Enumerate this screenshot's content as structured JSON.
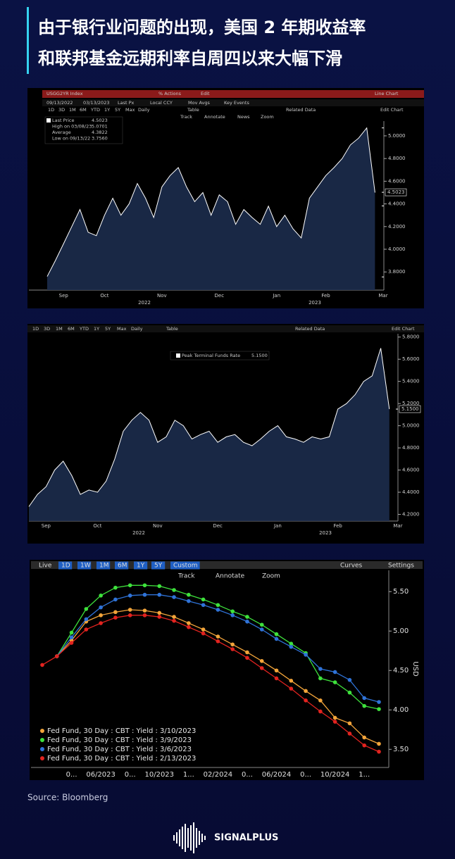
{
  "title": [
    "由于银行业问题的出现，美国 2 年期收益率",
    "和联邦基金远期利率自周四以来大幅下滑"
  ],
  "source": "Source: Bloomberg",
  "brand": "SIGNALPLUS",
  "chart_data": [
    {
      "type": "area",
      "toolbar": [
        [
          "USGG2YR Index",
          "% Actions",
          "Edit",
          "Line Chart"
        ],
        [
          "09/13/2022",
          "03/13/2023",
          "Last Px",
          "Local CCY",
          "Mov Avgs",
          "Key Events"
        ],
        [
          "1D",
          "3D",
          "1M",
          "6M",
          "YTD",
          "1Y",
          "5Y",
          "Max",
          "Daily",
          "Table",
          "Related Data",
          "Edit Chart"
        ],
        [
          "Track",
          "Annotate",
          "News",
          "Zoom"
        ]
      ],
      "stats": [
        {
          "name": "Last Price",
          "value": 4.5023,
          "value_label": "4.5023"
        },
        {
          "name": "High on 03/08/23",
          "value": 5.0701,
          "value_label": "5.0701"
        },
        {
          "name": "Average",
          "value": 4.3822,
          "value_label": "4.3822"
        },
        {
          "name": "Low on 09/13/22",
          "value": 3.756,
          "value_label": "3.7560"
        }
      ],
      "categories": [
        null,
        null,
        "Sep",
        null,
        null,
        null,
        null,
        "Oct",
        null,
        null,
        null,
        null,
        null,
        null,
        "Nov",
        null,
        null,
        null,
        null,
        null,
        null,
        "Dec",
        null,
        null,
        null,
        null,
        null,
        null,
        "Jan",
        null,
        null,
        null,
        null,
        null,
        "Feb",
        null,
        null,
        null,
        null,
        null,
        null,
        "Mar"
      ],
      "values": [
        3.76,
        3.9,
        4.05,
        4.2,
        4.35,
        4.15,
        4.12,
        4.3,
        4.45,
        4.3,
        4.4,
        4.58,
        4.45,
        4.28,
        4.55,
        4.65,
        4.72,
        4.55,
        4.42,
        4.5,
        4.3,
        4.48,
        4.42,
        4.22,
        4.35,
        4.28,
        4.22,
        4.38,
        4.2,
        4.3,
        4.18,
        4.1,
        4.45,
        4.55,
        4.65,
        4.72,
        4.8,
        4.92,
        4.98,
        5.07,
        4.5,
        null
      ],
      "x_groups": [
        "2022",
        "2023"
      ],
      "color": "#ffffff",
      "fill": "#1c2c4c",
      "ylim": [
        3.64,
        5.13
      ],
      "yticks": [
        {
          "value": 3.8,
          "label": "3.8000"
        },
        {
          "value": 4.0,
          "label": "4.0000"
        },
        {
          "value": 4.2,
          "label": "4.2000"
        },
        {
          "value": 4.4,
          "label": "4.4000"
        },
        {
          "value": 4.6,
          "label": "4.6000"
        },
        {
          "value": 4.8,
          "label": "4.8000"
        },
        {
          "value": 5.0,
          "label": "5.0000"
        }
      ]
    },
    {
      "type": "area",
      "toolbar": [
        [
          "1D",
          "3D",
          "1M",
          "6M",
          "YTD",
          "1Y",
          "5Y",
          "Max",
          "Daily",
          "Table",
          "Related Data",
          "Edit Chart"
        ]
      ],
      "stats": [
        {
          "name": "Peak Terminal Funds Rate",
          "value": 5.15,
          "value_label": "5.1500"
        }
      ],
      "categories": [
        null,
        null,
        "Sep",
        null,
        null,
        null,
        null,
        null,
        "Oct",
        null,
        null,
        null,
        null,
        null,
        null,
        "Nov",
        null,
        null,
        null,
        null,
        null,
        null,
        "Dec",
        null,
        null,
        null,
        null,
        null,
        null,
        "Jan",
        null,
        null,
        null,
        null,
        null,
        null,
        "Feb",
        null,
        null,
        null,
        null,
        null,
        null,
        "Mar"
      ],
      "values": [
        4.27,
        4.38,
        4.45,
        4.6,
        4.68,
        4.55,
        4.38,
        4.42,
        4.4,
        4.5,
        4.7,
        4.95,
        5.05,
        5.12,
        5.05,
        4.85,
        4.9,
        5.05,
        5.0,
        4.88,
        4.92,
        4.95,
        4.85,
        4.9,
        4.92,
        4.85,
        4.82,
        4.88,
        4.95,
        5.0,
        4.9,
        4.88,
        4.85,
        4.9,
        4.88,
        4.9,
        5.15,
        5.2,
        5.28,
        5.4,
        5.45,
        5.7,
        5.15,
        null
      ],
      "x_groups": [
        "2022",
        "2023"
      ],
      "color": "#ffffff",
      "fill": "#1c2c4c",
      "ylim": [
        4.14,
        5.83
      ],
      "yticks": [
        {
          "value": 4.2,
          "label": "4.2000"
        },
        {
          "value": 4.4,
          "label": "4.4000"
        },
        {
          "value": 4.6,
          "label": "4.6000"
        },
        {
          "value": 4.8,
          "label": "4.8000"
        },
        {
          "value": 5.0,
          "label": "5.0000"
        },
        {
          "value": 5.2,
          "label": "5.2000"
        },
        {
          "value": 5.4,
          "label": "5.4000"
        },
        {
          "value": 5.6,
          "label": "5.6000"
        },
        {
          "value": 5.8,
          "label": "5.8000"
        }
      ]
    },
    {
      "type": "line",
      "toolbar": [
        [
          "Live",
          "1D",
          "1W",
          "1M",
          "6M",
          "1Y",
          "5Y",
          "Custom",
          "Curves",
          "Settings"
        ],
        [
          "Track",
          "Annotate",
          "Zoom"
        ]
      ],
      "categories": [
        null,
        null,
        "0...",
        null,
        "06/2023",
        null,
        "0...",
        null,
        "10/2023",
        null,
        "1...",
        null,
        "02/2024",
        null,
        "0...",
        null,
        "06/2024",
        null,
        "0...",
        null,
        "10/2024",
        null,
        "1...",
        null
      ],
      "series": [
        {
          "name": "Fed Fund, 30 Day : CBT : Yield : 3/10/2023",
          "color": "#f2a43a",
          "values": [
            null,
            4.68,
            4.88,
            5.12,
            5.2,
            5.24,
            5.27,
            5.26,
            5.23,
            5.18,
            5.1,
            5.02,
            4.93,
            4.83,
            4.73,
            4.62,
            4.5,
            4.37,
            4.24,
            4.12,
            3.9,
            3.83,
            3.65,
            3.57
          ]
        },
        {
          "name": "Fed Fund, 30 Day : CBT : Yield : 3/9/2023",
          "color": "#3ee23c",
          "values": [
            null,
            4.68,
            4.98,
            5.28,
            5.45,
            5.55,
            5.58,
            5.58,
            5.57,
            5.52,
            5.46,
            5.4,
            5.33,
            5.25,
            5.18,
            5.08,
            4.96,
            4.84,
            4.72,
            4.4,
            4.35,
            4.22,
            4.05,
            4.01
          ]
        },
        {
          "name": "Fed Fund, 30 Day : CBT : Yield : 3/6/2023",
          "color": "#2f73d8",
          "values": [
            null,
            4.68,
            4.92,
            5.15,
            5.3,
            5.4,
            5.45,
            5.46,
            5.46,
            5.43,
            5.38,
            5.33,
            5.27,
            5.2,
            5.12,
            5.02,
            4.9,
            4.8,
            4.7,
            4.52,
            4.48,
            4.38,
            4.15,
            4.1
          ]
        },
        {
          "name": "Fed Fund, 30 Day : CBT : Yield : 2/13/2023",
          "color": "#e2231f",
          "values": [
            4.57,
            4.68,
            4.85,
            5.02,
            5.1,
            5.17,
            5.2,
            5.2,
            5.18,
            5.13,
            5.05,
            4.97,
            4.87,
            4.77,
            4.66,
            4.53,
            4.4,
            4.27,
            4.12,
            3.98,
            3.85,
            3.7,
            3.55,
            3.47
          ]
        }
      ],
      "ylabel": "USD",
      "legend": "lower left",
      "ylim": [
        3.27,
        5.77
      ],
      "yticks": [
        {
          "value": 3.5,
          "label": "3.50"
        },
        {
          "value": 4.0,
          "label": "4.00"
        },
        {
          "value": 4.5,
          "label": "4.50"
        },
        {
          "value": 5.0,
          "label": "5.00"
        },
        {
          "value": 5.5,
          "label": "5.50"
        }
      ]
    }
  ]
}
